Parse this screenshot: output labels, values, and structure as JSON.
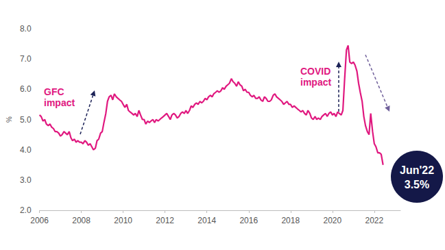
{
  "chart_data": {
    "type": "line",
    "y_label": "%",
    "annotations": [
      "GFC impact",
      "COVID impact",
      "Jun'22",
      "3.5%"
    ],
    "color": "#e0187f",
    "grid": false,
    "xlim": [
      2006,
      2023.25
    ],
    "xticks": [
      2006,
      2008,
      2010,
      2012,
      2014,
      2016,
      2018,
      2020,
      2022
    ],
    "ylim": [
      2,
      8
    ],
    "yticks": [
      {
        "value": 2,
        "label": "2.0"
      },
      {
        "value": 3,
        "label": "3.0"
      },
      {
        "value": 4,
        "label": "4.0"
      },
      {
        "value": 5,
        "label": "5.0"
      },
      {
        "value": 6,
        "label": "6.0"
      },
      {
        "value": 7,
        "label": "7.0"
      },
      {
        "value": 8,
        "label": "8.0"
      }
    ],
    "x": [
      2006,
      2006.08,
      2006.17,
      2006.25,
      2006.33,
      2006.42,
      2006.5,
      2006.58,
      2006.67,
      2006.75,
      2006.83,
      2006.92,
      2007,
      2007.08,
      2007.17,
      2007.25,
      2007.33,
      2007.42,
      2007.5,
      2007.58,
      2007.67,
      2007.75,
      2007.83,
      2007.92,
      2008,
      2008.08,
      2008.17,
      2008.25,
      2008.33,
      2008.42,
      2008.5,
      2008.58,
      2008.67,
      2008.75,
      2008.83,
      2008.92,
      2009,
      2009.08,
      2009.17,
      2009.25,
      2009.33,
      2009.42,
      2009.5,
      2009.58,
      2009.67,
      2009.75,
      2009.83,
      2009.92,
      2010,
      2010.08,
      2010.17,
      2010.25,
      2010.33,
      2010.42,
      2010.5,
      2010.58,
      2010.67,
      2010.75,
      2010.83,
      2010.92,
      2011,
      2011.08,
      2011.17,
      2011.25,
      2011.33,
      2011.42,
      2011.5,
      2011.58,
      2011.67,
      2011.75,
      2011.83,
      2011.92,
      2012,
      2012.08,
      2012.17,
      2012.25,
      2012.33,
      2012.42,
      2012.5,
      2012.58,
      2012.67,
      2012.75,
      2012.83,
      2012.92,
      2013,
      2013.08,
      2013.17,
      2013.25,
      2013.33,
      2013.42,
      2013.5,
      2013.58,
      2013.67,
      2013.75,
      2013.83,
      2013.92,
      2014,
      2014.08,
      2014.17,
      2014.25,
      2014.33,
      2014.42,
      2014.5,
      2014.58,
      2014.67,
      2014.75,
      2014.83,
      2014.92,
      2015,
      2015.08,
      2015.17,
      2015.25,
      2015.33,
      2015.42,
      2015.5,
      2015.58,
      2015.67,
      2015.75,
      2015.83,
      2015.92,
      2016,
      2016.08,
      2016.17,
      2016.25,
      2016.33,
      2016.42,
      2016.5,
      2016.58,
      2016.67,
      2016.75,
      2016.83,
      2016.92,
      2017,
      2017.08,
      2017.17,
      2017.25,
      2017.33,
      2017.42,
      2017.5,
      2017.58,
      2017.67,
      2017.75,
      2017.83,
      2017.92,
      2018,
      2018.08,
      2018.17,
      2018.25,
      2018.33,
      2018.42,
      2018.5,
      2018.58,
      2018.67,
      2018.75,
      2018.83,
      2018.92,
      2019,
      2019.08,
      2019.17,
      2019.25,
      2019.33,
      2019.42,
      2019.5,
      2019.58,
      2019.67,
      2019.75,
      2019.83,
      2019.92,
      2020,
      2020.08,
      2020.17,
      2020.25,
      2020.33,
      2020.42,
      2020.5,
      2020.58,
      2020.67,
      2020.75,
      2020.83,
      2020.92,
      2021,
      2021.08,
      2021.17,
      2021.25,
      2021.33,
      2021.42,
      2021.5,
      2021.58,
      2021.67,
      2021.75,
      2021.83,
      2021.92,
      2022,
      2022.08,
      2022.17,
      2022.25,
      2022.33,
      2022.42
    ],
    "values": [
      5.15,
      5.1,
      4.95,
      5.0,
      4.85,
      4.8,
      4.85,
      4.75,
      4.7,
      4.6,
      4.6,
      4.55,
      4.45,
      4.5,
      4.6,
      4.55,
      4.5,
      4.6,
      4.4,
      4.3,
      4.35,
      4.25,
      4.3,
      4.25,
      4.25,
      4.2,
      4.3,
      4.25,
      4.15,
      4.2,
      4.1,
      4.0,
      4.05,
      4.3,
      4.35,
      4.55,
      4.6,
      4.9,
      5.2,
      5.6,
      5.75,
      5.8,
      5.65,
      5.85,
      5.75,
      5.7,
      5.65,
      5.6,
      5.5,
      5.4,
      5.5,
      5.3,
      5.25,
      5.2,
      5.15,
      5.2,
      5.1,
      5.3,
      5.15,
      5.0,
      5.0,
      4.85,
      4.95,
      4.9,
      4.95,
      5.0,
      4.9,
      5.0,
      4.95,
      5.0,
      5.05,
      5.1,
      5.15,
      5.2,
      5.1,
      5.0,
      5.15,
      5.2,
      5.15,
      5.05,
      5.1,
      5.2,
      5.25,
      5.2,
      5.3,
      5.2,
      5.3,
      5.45,
      5.4,
      5.5,
      5.55,
      5.5,
      5.6,
      5.55,
      5.6,
      5.7,
      5.65,
      5.75,
      5.8,
      5.75,
      5.85,
      5.9,
      5.95,
      5.9,
      5.95,
      6.05,
      6.0,
      6.1,
      6.15,
      6.2,
      6.35,
      6.25,
      6.2,
      6.1,
      6.25,
      6.15,
      6.1,
      5.95,
      6.0,
      5.9,
      5.9,
      5.8,
      5.75,
      5.8,
      5.7,
      5.7,
      5.75,
      5.65,
      5.6,
      5.75,
      5.7,
      5.6,
      5.6,
      5.65,
      5.8,
      5.85,
      5.75,
      5.7,
      5.65,
      5.6,
      5.5,
      5.55,
      5.6,
      5.5,
      5.5,
      5.4,
      5.45,
      5.4,
      5.35,
      5.3,
      5.25,
      5.3,
      5.2,
      5.15,
      5.3,
      5.2,
      5.05,
      5.0,
      5.1,
      5.0,
      5.05,
      5.0,
      5.1,
      5.15,
      5.2,
      5.1,
      5.2,
      5.25,
      5.15,
      5.2,
      5.1,
      5.25,
      5.2,
      5.15,
      5.3,
      6.3,
      7.3,
      7.45,
      6.9,
      6.85,
      6.9,
      6.8,
      6.6,
      6.2,
      5.9,
      5.6,
      5.1,
      4.8,
      4.6,
      4.5,
      5.2,
      4.6,
      4.2,
      4.1,
      3.9,
      3.9,
      3.85,
      3.5
    ]
  }
}
